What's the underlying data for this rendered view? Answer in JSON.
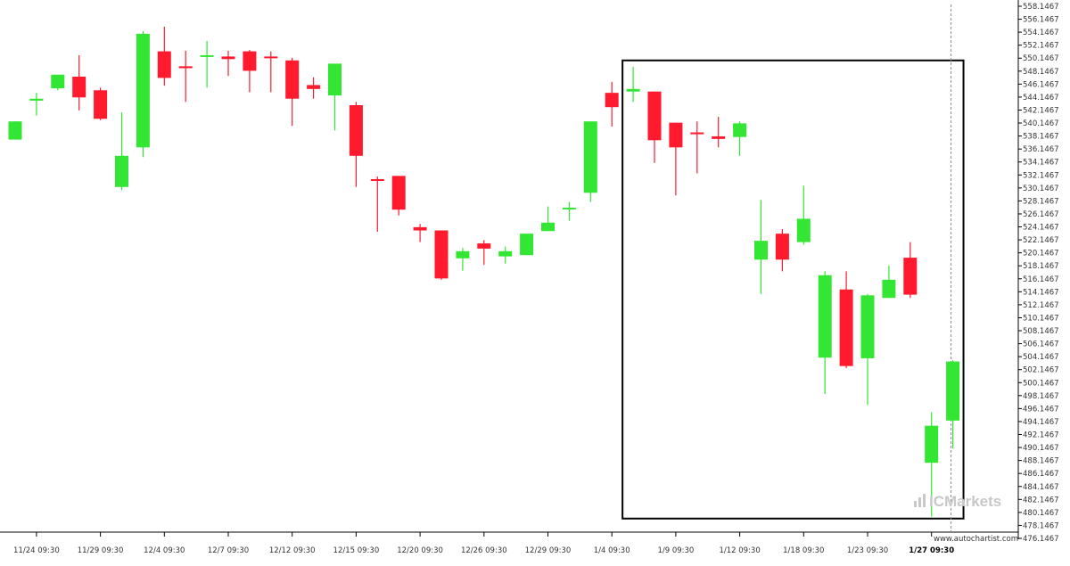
{
  "chart_data": {
    "type": "candlestick",
    "title": "",
    "xlabel": "",
    "ylabel": "",
    "ylim": [
      476.1467,
      558.1467
    ],
    "y_ticks": [
      "558.1467",
      "556.1467",
      "554.1467",
      "552.1467",
      "550.1467",
      "548.1467",
      "546.1467",
      "544.1467",
      "542.1467",
      "540.1467",
      "538.1467",
      "536.1467",
      "534.1467",
      "532.1467",
      "530.1467",
      "528.1467",
      "526.1467",
      "524.1467",
      "522.1467",
      "520.1467",
      "518.1467",
      "516.1467",
      "514.1467",
      "512.1467",
      "510.1467",
      "508.1467",
      "506.1467",
      "504.1467",
      "502.1467",
      "500.1467",
      "498.1467",
      "496.1467",
      "494.1467",
      "492.1467",
      "490.1467",
      "488.1467",
      "486.1467",
      "484.1467",
      "482.1467",
      "480.1467",
      "478.1467",
      "476.1467"
    ],
    "x_ticks": [
      {
        "index": 1,
        "label": "11/24 09:30"
      },
      {
        "index": 4,
        "label": "11/29 09:30"
      },
      {
        "index": 7,
        "label": "12/4 09:30"
      },
      {
        "index": 10,
        "label": "12/7 09:30"
      },
      {
        "index": 13,
        "label": "12/12 09:30"
      },
      {
        "index": 16,
        "label": "12/15 09:30"
      },
      {
        "index": 19,
        "label": "12/20 09:30"
      },
      {
        "index": 22,
        "label": "12/26 09:30"
      },
      {
        "index": 25,
        "label": "12/29 09:30"
      },
      {
        "index": 28,
        "label": "1/4 09:30"
      },
      {
        "index": 31,
        "label": "1/9 09:30"
      },
      {
        "index": 34,
        "label": "1/12 09:30"
      },
      {
        "index": 37,
        "label": "1/18 09:30"
      },
      {
        "index": 40,
        "label": "1/23 09:30"
      },
      {
        "index": 43,
        "label": "1/27 09:30",
        "emphasis": true
      }
    ],
    "candles": [
      {
        "o": 537.6,
        "h": 540.4,
        "l": 537.6,
        "c": 540.4
      },
      {
        "o": 543.6,
        "h": 544.8,
        "l": 541.3,
        "c": 543.9
      },
      {
        "o": 545.5,
        "h": 547.6,
        "l": 545.2,
        "c": 547.6
      },
      {
        "o": 547.3,
        "h": 550.6,
        "l": 542.1,
        "c": 544.1
      },
      {
        "o": 545.2,
        "h": 545.6,
        "l": 540.6,
        "c": 540.8
      },
      {
        "o": 530.3,
        "h": 541.8,
        "l": 529.8,
        "c": 535.1
      },
      {
        "o": 536.4,
        "h": 554.3,
        "l": 534.9,
        "c": 553.9
      },
      {
        "o": 551.2,
        "h": 555.0,
        "l": 545.9,
        "c": 547.1
      },
      {
        "o": 548.9,
        "h": 551.3,
        "l": 543.4,
        "c": 548.6
      },
      {
        "o": 550.4,
        "h": 552.8,
        "l": 545.6,
        "c": 550.6
      },
      {
        "o": 550.4,
        "h": 551.3,
        "l": 547.4,
        "c": 550.0
      },
      {
        "o": 551.2,
        "h": 551.4,
        "l": 544.9,
        "c": 548.2
      },
      {
        "o": 550.4,
        "h": 551.2,
        "l": 544.9,
        "c": 550.2
      },
      {
        "o": 549.8,
        "h": 550.2,
        "l": 539.7,
        "c": 543.9
      },
      {
        "o": 546.0,
        "h": 547.2,
        "l": 543.9,
        "c": 545.4
      },
      {
        "o": 544.4,
        "h": 549.3,
        "l": 539.0,
        "c": 549.3
      },
      {
        "o": 542.9,
        "h": 543.4,
        "l": 530.3,
        "c": 535.1
      },
      {
        "o": 531.5,
        "h": 531.9,
        "l": 523.4,
        "c": 531.3
      },
      {
        "o": 532.0,
        "h": 532.0,
        "l": 525.9,
        "c": 526.8
      },
      {
        "o": 524.1,
        "h": 524.6,
        "l": 521.8,
        "c": 523.6
      },
      {
        "o": 523.6,
        "h": 523.6,
        "l": 516.0,
        "c": 516.2
      },
      {
        "o": 519.3,
        "h": 520.9,
        "l": 517.4,
        "c": 520.4
      },
      {
        "o": 521.6,
        "h": 522.1,
        "l": 518.3,
        "c": 520.8
      },
      {
        "o": 519.6,
        "h": 521.1,
        "l": 518.5,
        "c": 520.4
      },
      {
        "o": 519.8,
        "h": 523.1,
        "l": 519.8,
        "c": 523.1
      },
      {
        "o": 523.5,
        "h": 527.3,
        "l": 523.5,
        "c": 524.8
      },
      {
        "o": 527.1,
        "h": 528.0,
        "l": 525.1,
        "c": 527.1
      },
      {
        "o": 529.4,
        "h": 540.4,
        "l": 528.0,
        "c": 540.4
      },
      {
        "o": 544.8,
        "h": 546.5,
        "l": 539.6,
        "c": 542.6
      },
      {
        "o": 545.0,
        "h": 548.8,
        "l": 543.4,
        "c": 545.4
      },
      {
        "o": 545.0,
        "h": 545.0,
        "l": 534.0,
        "c": 537.5
      },
      {
        "o": 540.2,
        "h": 540.2,
        "l": 529.0,
        "c": 536.4
      },
      {
        "o": 538.7,
        "h": 540.4,
        "l": 532.4,
        "c": 538.5
      },
      {
        "o": 538.1,
        "h": 541.1,
        "l": 536.4,
        "c": 537.7
      },
      {
        "o": 538.0,
        "h": 540.4,
        "l": 535.1,
        "c": 540.1
      },
      {
        "o": 519.1,
        "h": 528.3,
        "l": 513.8,
        "c": 522.0
      },
      {
        "o": 523.1,
        "h": 523.8,
        "l": 517.3,
        "c": 519.1
      },
      {
        "o": 521.8,
        "h": 530.5,
        "l": 521.4,
        "c": 525.4
      },
      {
        "o": 504.0,
        "h": 517.3,
        "l": 498.4,
        "c": 516.7
      },
      {
        "o": 514.5,
        "h": 517.3,
        "l": 502.4,
        "c": 502.7
      },
      {
        "o": 503.9,
        "h": 513.8,
        "l": 496.7,
        "c": 513.6
      },
      {
        "o": 513.2,
        "h": 518.2,
        "l": 513.2,
        "c": 516.0
      },
      {
        "o": 519.4,
        "h": 521.8,
        "l": 513.2,
        "c": 513.7
      },
      {
        "o": 487.8,
        "h": 495.6,
        "l": 479.5,
        "c": 493.5
      },
      {
        "o": 494.3,
        "h": 503.6,
        "l": 490.0,
        "c": 503.4
      }
    ],
    "colors": {
      "up": "#33e633",
      "down": "#ff1a2e"
    },
    "annotation_box": {
      "from_index": 28.5,
      "to_index": 44.5,
      "y_top": 549.8,
      "y_bottom": 479.2
    },
    "vertical_marker_index": 44,
    "watermark": "ICMarkets",
    "source_credit": "www.autochartist.com"
  }
}
